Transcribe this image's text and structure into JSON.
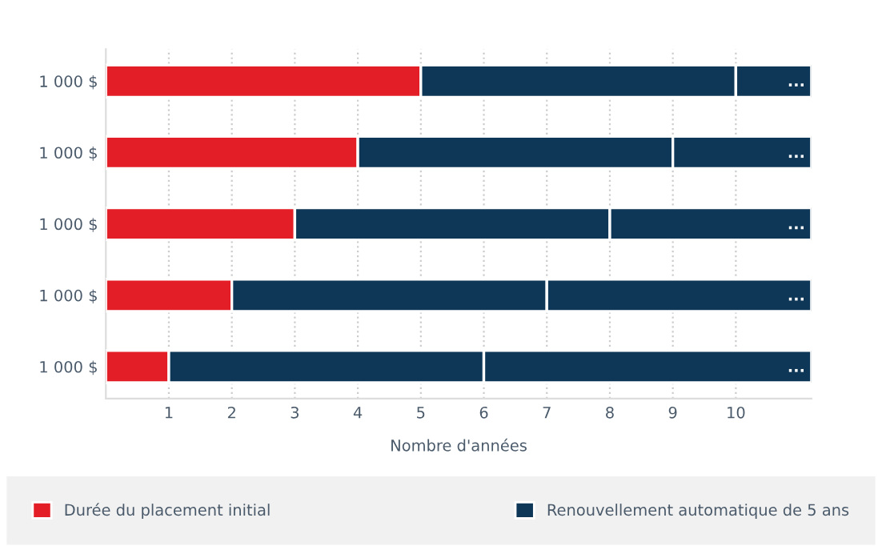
{
  "chart_data": {
    "type": "bar",
    "orientation": "horizontal",
    "stacked": true,
    "categories": [
      "1 000 $",
      "1 000 $",
      "1 000 $",
      "1 000 $",
      "1 000 $"
    ],
    "series": [
      {
        "name": "Durée du placement initial",
        "color": "#e31e26",
        "values": [
          5,
          4,
          3,
          2,
          1
        ]
      },
      {
        "name": "Renouvellement automatique de 5 ans",
        "color": "#0e3757",
        "values": [
          5,
          5,
          5,
          5,
          5
        ]
      },
      {
        "color": "#0e3757",
        "values": [
          1.2,
          2.2,
          3.2,
          4.2,
          5.2
        ]
      }
    ],
    "xlabel": "Nombre d'années",
    "xlim": [
      0,
      11.2
    ],
    "xticks": [
      1,
      2,
      3,
      4,
      5,
      6,
      7,
      8,
      9,
      10
    ],
    "grid": "x",
    "legend": "bottom",
    "annotations": [
      "...",
      "...",
      "...",
      "...",
      "..."
    ]
  }
}
